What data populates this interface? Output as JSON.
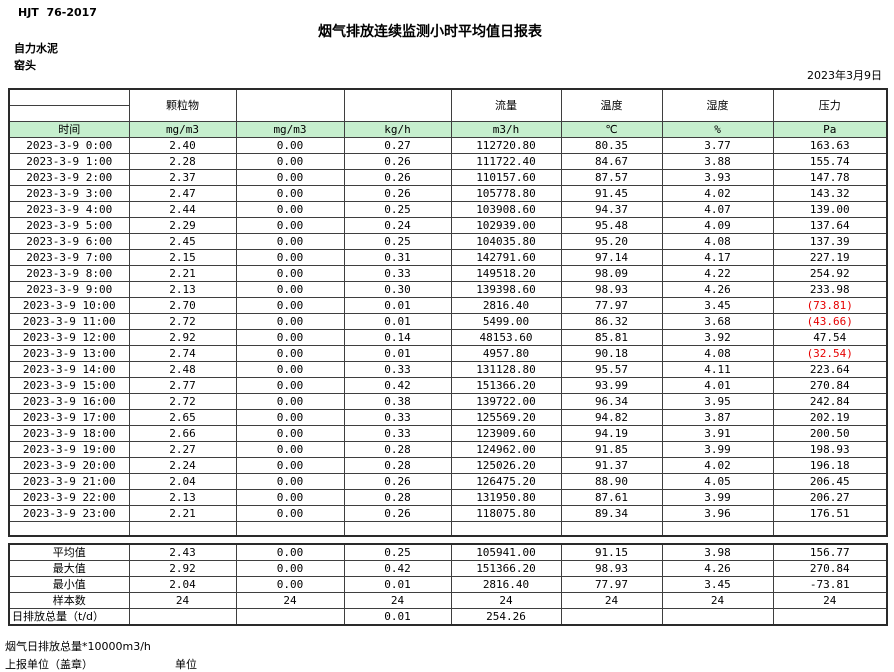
{
  "meta": {
    "standard": "HJT  76-2017",
    "title": "烟气排放连续监测小时平均值日报表",
    "company": "自力水泥",
    "location": "窑头",
    "date": "2023年3月9日"
  },
  "table": {
    "groups": [
      "颗粒物",
      "",
      "",
      "流量",
      "温度",
      "湿度",
      "压力"
    ],
    "time_label": "时间",
    "units": [
      "mg/m3",
      "mg/m3",
      "kg/h",
      "m3/h",
      "℃",
      "%",
      "Pa"
    ],
    "rows": [
      {
        "time": "2023-3-9 0:00",
        "values": [
          "2.40",
          "0.00",
          "0.27",
          "112720.80",
          "80.35",
          "3.77",
          "163.63"
        ]
      },
      {
        "time": "2023-3-9 1:00",
        "values": [
          "2.28",
          "0.00",
          "0.26",
          "111722.40",
          "84.67",
          "3.88",
          "155.74"
        ]
      },
      {
        "time": "2023-3-9 2:00",
        "values": [
          "2.37",
          "0.00",
          "0.26",
          "110157.60",
          "87.57",
          "3.93",
          "147.78"
        ]
      },
      {
        "time": "2023-3-9 3:00",
        "values": [
          "2.47",
          "0.00",
          "0.26",
          "105778.80",
          "91.45",
          "4.02",
          "143.32"
        ]
      },
      {
        "time": "2023-3-9 4:00",
        "values": [
          "2.44",
          "0.00",
          "0.25",
          "103908.60",
          "94.37",
          "4.07",
          "139.00"
        ]
      },
      {
        "time": "2023-3-9 5:00",
        "values": [
          "2.29",
          "0.00",
          "0.24",
          "102939.00",
          "95.48",
          "4.09",
          "137.64"
        ]
      },
      {
        "time": "2023-3-9 6:00",
        "values": [
          "2.45",
          "0.00",
          "0.25",
          "104035.80",
          "95.20",
          "4.08",
          "137.39"
        ]
      },
      {
        "time": "2023-3-9 7:00",
        "values": [
          "2.15",
          "0.00",
          "0.31",
          "142791.60",
          "97.14",
          "4.17",
          "227.19"
        ]
      },
      {
        "time": "2023-3-9 8:00",
        "values": [
          "2.21",
          "0.00",
          "0.33",
          "149518.20",
          "98.09",
          "4.22",
          "254.92"
        ]
      },
      {
        "time": "2023-3-9 9:00",
        "values": [
          "2.13",
          "0.00",
          "0.30",
          "139398.60",
          "98.93",
          "4.26",
          "233.98"
        ]
      },
      {
        "time": "2023-3-9 10:00",
        "values": [
          "2.70",
          "0.00",
          "0.01",
          "2816.40",
          "77.97",
          "3.45",
          "(73.81)"
        ]
      },
      {
        "time": "2023-3-9 11:00",
        "values": [
          "2.72",
          "0.00",
          "0.01",
          "5499.00",
          "86.32",
          "3.68",
          "(43.66)"
        ]
      },
      {
        "time": "2023-3-9 12:00",
        "values": [
          "2.92",
          "0.00",
          "0.14",
          "48153.60",
          "85.81",
          "3.92",
          "47.54"
        ]
      },
      {
        "time": "2023-3-9 13:00",
        "values": [
          "2.74",
          "0.00",
          "0.01",
          "4957.80",
          "90.18",
          "4.08",
          "(32.54)"
        ]
      },
      {
        "time": "2023-3-9 14:00",
        "values": [
          "2.48",
          "0.00",
          "0.33",
          "131128.80",
          "95.57",
          "4.11",
          "223.64"
        ]
      },
      {
        "time": "2023-3-9 15:00",
        "values": [
          "2.77",
          "0.00",
          "0.42",
          "151366.20",
          "93.99",
          "4.01",
          "270.84"
        ]
      },
      {
        "time": "2023-3-9 16:00",
        "values": [
          "2.72",
          "0.00",
          "0.38",
          "139722.00",
          "96.34",
          "3.95",
          "242.84"
        ]
      },
      {
        "time": "2023-3-9 17:00",
        "values": [
          "2.65",
          "0.00",
          "0.33",
          "125569.20",
          "94.82",
          "3.87",
          "202.19"
        ]
      },
      {
        "time": "2023-3-9 18:00",
        "values": [
          "2.66",
          "0.00",
          "0.33",
          "123909.60",
          "94.19",
          "3.91",
          "200.50"
        ]
      },
      {
        "time": "2023-3-9 19:00",
        "values": [
          "2.27",
          "0.00",
          "0.28",
          "124962.00",
          "91.85",
          "3.99",
          "198.93"
        ]
      },
      {
        "time": "2023-3-9 20:00",
        "values": [
          "2.24",
          "0.00",
          "0.28",
          "125026.20",
          "91.37",
          "4.02",
          "196.18"
        ]
      },
      {
        "time": "2023-3-9 21:00",
        "values": [
          "2.04",
          "0.00",
          "0.26",
          "126475.20",
          "88.90",
          "4.05",
          "206.45"
        ]
      },
      {
        "time": "2023-3-9 22:00",
        "values": [
          "2.13",
          "0.00",
          "0.28",
          "131950.80",
          "87.61",
          "3.99",
          "206.27"
        ]
      },
      {
        "time": "2023-3-9 23:00",
        "values": [
          "2.21",
          "0.00",
          "0.26",
          "118075.80",
          "89.34",
          "3.96",
          "176.51"
        ]
      }
    ],
    "summary": [
      {
        "label": "平均值",
        "values": [
          "2.43",
          "0.00",
          "0.25",
          "105941.00",
          "91.15",
          "3.98",
          "156.77"
        ]
      },
      {
        "label": "最大值",
        "values": [
          "2.92",
          "0.00",
          "0.42",
          "151366.20",
          "98.93",
          "4.26",
          "270.84"
        ]
      },
      {
        "label": "最小值",
        "values": [
          "2.04",
          "0.00",
          "0.01",
          "2816.40",
          "77.97",
          "3.45",
          "-73.81"
        ]
      },
      {
        "label": "样本数",
        "values": [
          "24",
          "24",
          "24",
          "24",
          "24",
          "24",
          "24"
        ]
      },
      {
        "label": "日排放总量（t/d）",
        "values": [
          "",
          "",
          "0.01",
          "254.26",
          "",
          "",
          ""
        ]
      }
    ]
  },
  "footer": {
    "note": "烟气日排放总量*10000m3/h",
    "report_unit_label": "上报单位（盖章）",
    "unit_label": "单位"
  },
  "colors": {
    "header_green": "#c6efce",
    "negative_red": "#e60000"
  }
}
